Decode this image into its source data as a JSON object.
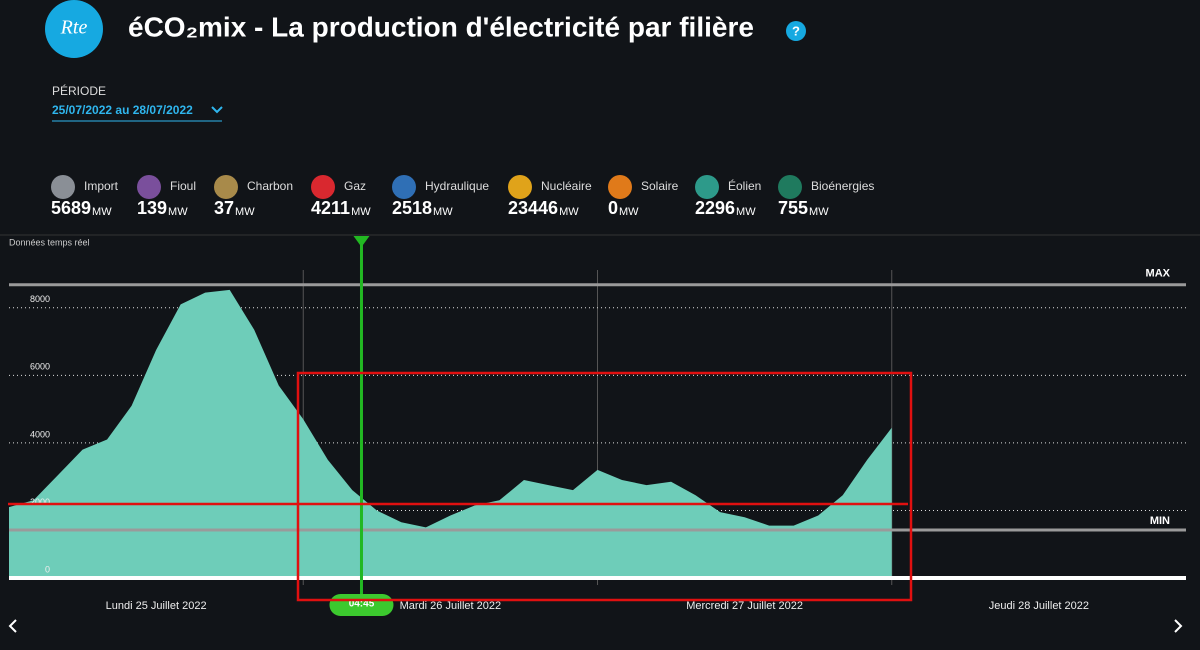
{
  "header": {
    "logo": "Rte",
    "title": "éCO₂mix - La production d'électricité par filière",
    "help": "?"
  },
  "period": {
    "label": "PÉRIODE",
    "value": "25/07/2022 au 28/07/2022"
  },
  "unit": "MW",
  "sources": [
    {
      "name": "Import",
      "value": 5689,
      "color": "#8a8f96"
    },
    {
      "name": "Fioul",
      "value": 139,
      "color": "#7a4f9c"
    },
    {
      "name": "Charbon",
      "value": 37,
      "color": "#a88a4a"
    },
    {
      "name": "Gaz",
      "value": 4211,
      "color": "#d9282f"
    },
    {
      "name": "Hydraulique",
      "value": 2518,
      "color": "#2f6fb5"
    },
    {
      "name": "Nucléaire",
      "value": 23446,
      "color": "#e0a31a"
    },
    {
      "name": "Solaire",
      "value": 0,
      "color": "#e07a1a"
    },
    {
      "name": "Éolien",
      "value": 2296,
      "color": "#2d9a8a"
    },
    {
      "name": "Bioénergies",
      "value": 755,
      "color": "#1f7a5e"
    }
  ],
  "chart_data": {
    "type": "area",
    "subtitle": "Données temps réel",
    "x": [
      0,
      2,
      4,
      6,
      8,
      10,
      12,
      14,
      16,
      18,
      20,
      22,
      24,
      26,
      28,
      30,
      32,
      34,
      36,
      38,
      40,
      42,
      44,
      46,
      48,
      50,
      52,
      54,
      56,
      58,
      60,
      62,
      64,
      66,
      68,
      70,
      72
    ],
    "values": [
      2100,
      2300,
      3050,
      3800,
      4100,
      5100,
      6750,
      8100,
      8450,
      8530,
      7350,
      5700,
      4700,
      3500,
      2600,
      2000,
      1650,
      1500,
      1850,
      2150,
      2300,
      2900,
      2750,
      2600,
      3200,
      2900,
      2750,
      2850,
      2450,
      1950,
      1800,
      1550,
      1550,
      1850,
      2450,
      3500,
      4450
    ],
    "color": "#6ecdb9",
    "xlim": [
      0,
      96
    ],
    "xticks": [
      {
        "value": 12,
        "label": "Lundi 25 Juillet 2022"
      },
      {
        "value": 36,
        "label": "Mardi 26 Juillet 2022"
      },
      {
        "value": 60,
        "label": "Mercredi 27 Juillet 2022"
      },
      {
        "value": 84,
        "label": "Jeudi 28 Juillet 2022"
      }
    ],
    "xgrid": [
      24,
      48,
      72
    ],
    "ylim": [
      0,
      9000
    ],
    "yticks": [
      0,
      2000,
      4000,
      6000,
      8000
    ],
    "max_line": {
      "value": 8680,
      "label": "MAX"
    },
    "min_line": {
      "value": 1420,
      "label": "MIN"
    },
    "cursor": {
      "value": 28.75,
      "label": "04:45"
    }
  }
}
